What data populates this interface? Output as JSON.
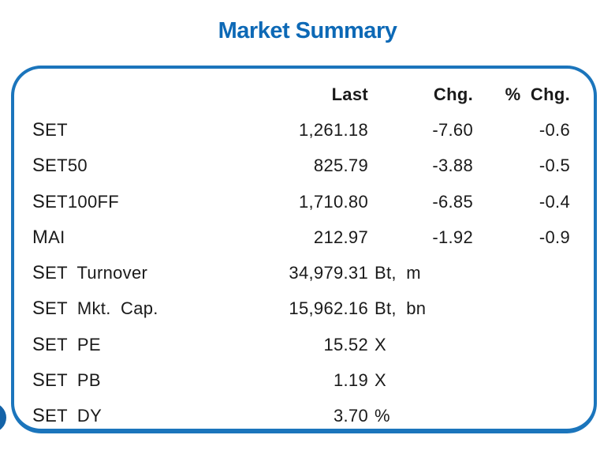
{
  "title": "Market Summary",
  "colors": {
    "title_accent": "#0d69b6",
    "card_border": "#1b75bc",
    "corner_dot": "#1463a8",
    "text": "#1a1a1a"
  },
  "table": {
    "header": {
      "last": "Last",
      "chg": "Chg.",
      "pct_chg": "% Chg."
    },
    "rows": [
      {
        "label": "SET",
        "last": "1,261.18",
        "unit": "",
        "chg": "-7.60",
        "pct_chg": "-0.6"
      },
      {
        "label": "SET50",
        "last": "825.79",
        "unit": "",
        "chg": "-3.88",
        "pct_chg": "-0.5"
      },
      {
        "label": "SET100FF",
        "last": "1,710.80",
        "unit": "",
        "chg": "-6.85",
        "pct_chg": "-0.4"
      },
      {
        "label": "MAI",
        "last": "212.97",
        "unit": "",
        "chg": "-1.92",
        "pct_chg": "-0.9"
      },
      {
        "label": "SET Turnover",
        "last": "34,979.31",
        "unit": "Bt, m",
        "chg": "",
        "pct_chg": ""
      },
      {
        "label": "SET Mkt. Cap.",
        "last": "15,962.16",
        "unit": "Bt, bn",
        "chg": "",
        "pct_chg": ""
      },
      {
        "label": "SET PE",
        "last": "15.52",
        "unit": "X",
        "chg": "",
        "pct_chg": ""
      },
      {
        "label": "SET PB",
        "last": "1.19",
        "unit": "X",
        "chg": "",
        "pct_chg": ""
      },
      {
        "label": "SET DY",
        "last": "3.70",
        "unit": "%",
        "chg": "",
        "pct_chg": ""
      }
    ]
  }
}
